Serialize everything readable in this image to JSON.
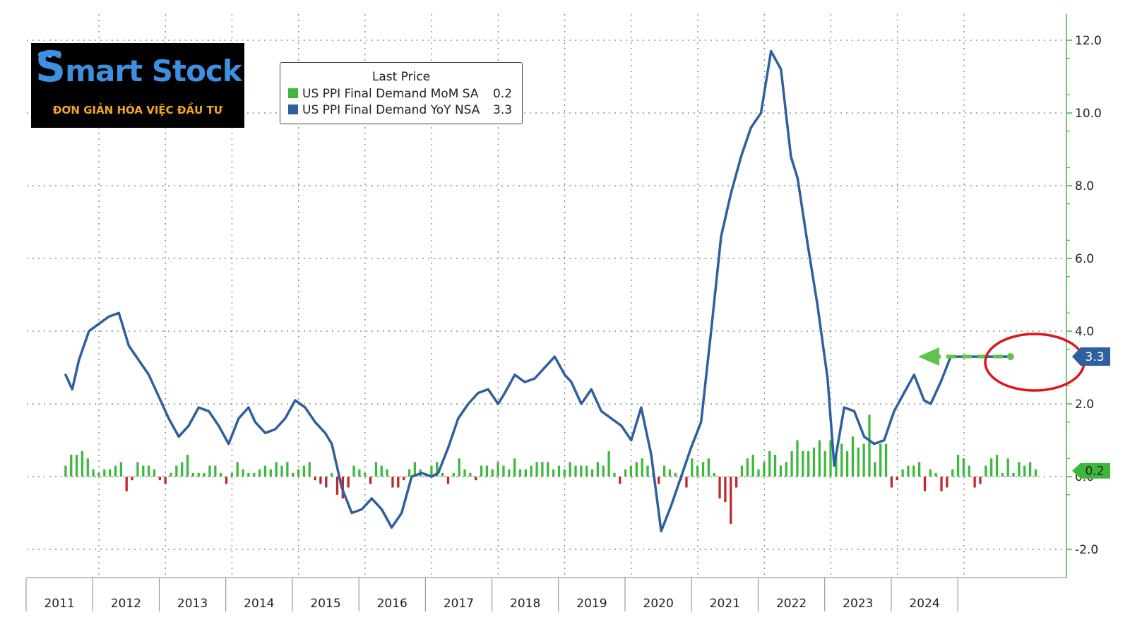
{
  "logo": {
    "name_first": "S",
    "name_rest": "mart Stock",
    "tagline": "ĐƠN GIẢN HÓA VIỆC ĐẦU TƯ"
  },
  "legend": {
    "title": "Last Price",
    "items": [
      {
        "label": "US PPI Final Demand MoM SA",
        "value": "0.2",
        "color": "#3db83d"
      },
      {
        "label": "US PPI Final Demand YoY NSA",
        "value": "3.3",
        "color": "#2e5f9e"
      }
    ]
  },
  "colors": {
    "line": "#2e5f9e",
    "bar_pos": "#3db83d",
    "bar_neg": "#c0262d",
    "axis": "#3db83d",
    "annotation_circle": "#e0141e",
    "annotation_arrow": "#5fc24a"
  },
  "chart_data": {
    "type": "bar",
    "x_labels": [
      "2011",
      "2012",
      "2013",
      "2014",
      "2015",
      "2016",
      "2017",
      "2018",
      "2019",
      "2020",
      "2021",
      "2022",
      "2023",
      "2024"
    ],
    "y_ticks": [
      "12.0",
      "10.0",
      "8.0",
      "6.0",
      "4.0",
      "2.0",
      "0.0",
      "-2.0"
    ],
    "ylim": [
      -2.8,
      12.8
    ],
    "x_range": [
      2011,
      2025.2
    ],
    "grid": true,
    "legend_position": "top-left",
    "series": [
      {
        "name": "US PPI Final Demand YoY NSA",
        "type": "line",
        "last_value": "3.3",
        "x": [
          2010.5,
          2010.6,
          2010.7,
          2010.85,
          2011.0,
          2011.15,
          2011.3,
          2011.45,
          2011.6,
          2011.75,
          2011.9,
          2012.05,
          2012.2,
          2012.35,
          2012.5,
          2012.65,
          2012.8,
          2012.95,
          2013.1,
          2013.25,
          2013.35,
          2013.5,
          2013.65,
          2013.8,
          2013.95,
          2014.1,
          2014.25,
          2014.4,
          2014.5,
          2014.65,
          2014.8,
          2014.95,
          2015.1,
          2015.25,
          2015.4,
          2015.55,
          2015.7,
          2015.85,
          2016.0,
          2016.1,
          2016.25,
          2016.4,
          2016.55,
          2016.7,
          2016.85,
          2017.0,
          2017.1,
          2017.25,
          2017.4,
          2017.55,
          2017.7,
          2017.85,
          2018.0,
          2018.1,
          2018.25,
          2018.4,
          2018.55,
          2018.7,
          2018.85,
          2019.0,
          2019.15,
          2019.3,
          2019.45,
          2019.6,
          2019.75,
          2019.9,
          2020.05,
          2020.2,
          2020.35,
          2020.5,
          2020.65,
          2020.8,
          2020.95,
          2021.1,
          2021.25,
          2021.4,
          2021.5,
          2021.65,
          2021.8,
          2021.95,
          2022.05,
          2022.2,
          2022.35,
          2022.5,
          2022.65,
          2022.8,
          2022.95,
          2023.1,
          2023.25,
          2023.4,
          2023.5,
          2023.65,
          2023.8,
          2023.95,
          2024.1,
          2024.25,
          2024.4,
          2024.55,
          2024.7,
          2024.85,
          2024.95,
          2025.1
        ],
        "values": [
          2.8,
          2.4,
          3.2,
          4.0,
          4.2,
          4.4,
          4.5,
          3.6,
          3.2,
          2.8,
          2.2,
          1.6,
          1.1,
          1.4,
          1.9,
          1.8,
          1.4,
          0.9,
          1.6,
          1.9,
          1.5,
          1.2,
          1.3,
          1.6,
          2.1,
          1.9,
          1.5,
          1.2,
          0.9,
          -0.3,
          -1.0,
          -0.9,
          -0.6,
          -0.9,
          -1.4,
          -1.0,
          0.0,
          0.1,
          0.0,
          0.1,
          0.8,
          1.6,
          2.0,
          2.3,
          2.4,
          2.0,
          2.3,
          2.8,
          2.6,
          2.7,
          3.0,
          3.3,
          2.8,
          2.6,
          2.0,
          2.4,
          1.8,
          1.6,
          1.4,
          1.0,
          1.9,
          0.6,
          -1.5,
          -0.8,
          0.0,
          0.8,
          1.5,
          4.0,
          6.6,
          7.8,
          8.8,
          9.6,
          10.0,
          11.7,
          11.2,
          8.8,
          8.2,
          6.4,
          4.7,
          2.7,
          0.3,
          1.9,
          1.8,
          1.1,
          0.9,
          1.0,
          1.8,
          2.3,
          2.8,
          2.1,
          2.0,
          2.6,
          3.3,
          3.3,
          3.3,
          3.3,
          3.3,
          3.3,
          3.3,
          3.3,
          3.3,
          3.3
        ]
      },
      {
        "name": "US PPI Final Demand MoM SA",
        "type": "bar",
        "last_value": "0.2",
        "x_start": 2010.5,
        "x_step": 0.0833,
        "values": [
          0.3,
          0.6,
          0.6,
          0.7,
          0.5,
          0.2,
          0.1,
          0.2,
          0.2,
          0.3,
          0.4,
          -0.4,
          -0.1,
          0.4,
          0.3,
          0.3,
          0.2,
          -0.1,
          -0.2,
          0.1,
          0.3,
          0.4,
          0.6,
          0.1,
          0.1,
          0.1,
          0.3,
          0.3,
          0.1,
          -0.2,
          0.1,
          0.4,
          0.2,
          0.1,
          0.1,
          0.2,
          0.3,
          0.2,
          0.4,
          0.3,
          0.4,
          0.1,
          0.2,
          0.3,
          0.4,
          -0.1,
          -0.2,
          -0.3,
          0.1,
          -0.5,
          -0.6,
          -0.3,
          0.3,
          0.2,
          0.1,
          -0.2,
          0.4,
          0.3,
          0.2,
          -0.3,
          -0.3,
          -0.1,
          0.2,
          0.4,
          0.2,
          0.1,
          0.3,
          0.4,
          0.1,
          -0.2,
          0.1,
          0.5,
          0.2,
          0.1,
          -0.1,
          0.3,
          0.3,
          0.2,
          0.4,
          0.3,
          0.2,
          0.5,
          0.2,
          0.2,
          0.3,
          0.4,
          0.4,
          0.4,
          0.2,
          0.3,
          0.2,
          0.4,
          0.3,
          0.3,
          0.3,
          0.2,
          0.4,
          0.3,
          0.7,
          0.1,
          -0.2,
          0.2,
          0.3,
          0.4,
          0.5,
          0.3,
          0.1,
          -0.2,
          0.3,
          0.2,
          0.1,
          -0.1,
          -0.3,
          0.5,
          0.3,
          0.4,
          0.5,
          0.1,
          -0.6,
          -0.7,
          -1.3,
          -0.3,
          0.3,
          0.5,
          0.6,
          0.2,
          0.4,
          0.7,
          0.6,
          0.3,
          0.4,
          0.7,
          1.0,
          0.7,
          0.7,
          0.8,
          1.0,
          0.7,
          1.0,
          0.6,
          0.9,
          0.7,
          1.1,
          0.8,
          0.9,
          1.7,
          0.4,
          0.9,
          0.9,
          -0.3,
          -0.1,
          0.2,
          0.3,
          0.3,
          0.4,
          -0.4,
          0.2,
          0.1,
          -0.4,
          -0.3,
          0.2,
          0.6,
          0.5,
          0.3,
          -0.3,
          -0.2,
          0.3,
          0.5,
          0.6,
          0.1,
          0.5,
          0.1,
          0.4,
          0.3,
          0.4,
          0.2
        ]
      }
    ]
  }
}
